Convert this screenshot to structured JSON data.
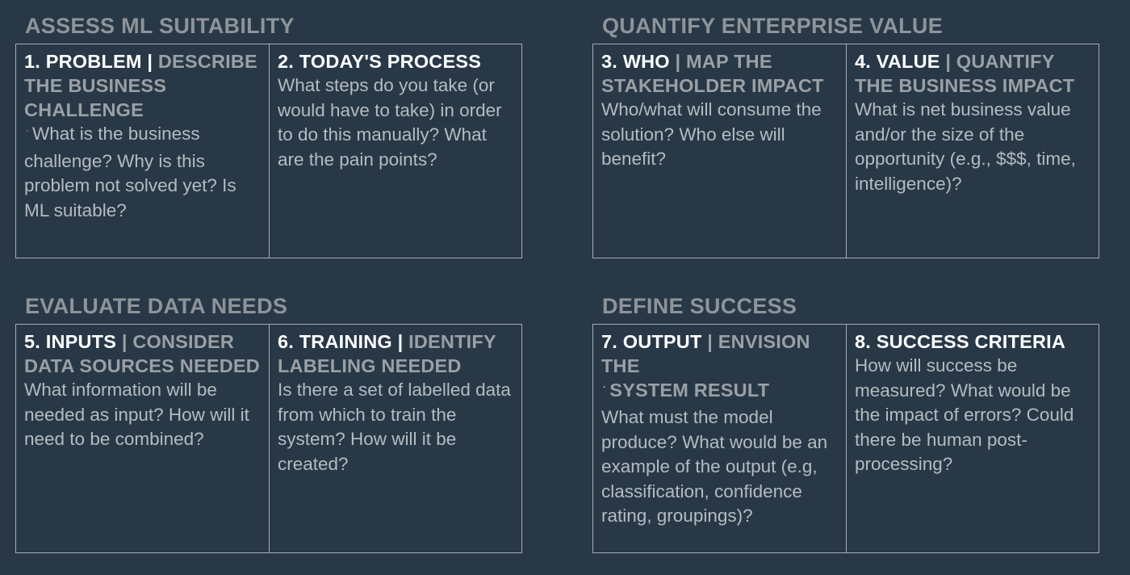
{
  "sections": [
    {
      "title": "ASSESS ML SUITABILITY",
      "cells": [
        {
          "num": "1. PROBLEM |",
          "sub": "DESCRIBE THE BUSINESS CHALLENGE",
          "body": "What is the business challenge? Why is this problem not solved yet? Is ML suitable?"
        },
        {
          "num": "2. TODAY'S PROCESS",
          "sub": "",
          "body": "What steps do you take (or would have to take) in order to do this manually? What are the pain points?"
        }
      ]
    },
    {
      "title": "QUANTIFY ENTERPRISE VALUE",
      "cells": [
        {
          "num": "3. WHO",
          "sub": "| MAP THE STAKEHOLDER IMPACT",
          "body": "Who/what will consume the solution? Who else will benefit?"
        },
        {
          "num": "4. VALUE",
          "sub": "| QUANTIFY THE BUSINESS IMPACT",
          "body": "What is net business value and/or the size of the opportunity (e.g., $$$, time, intelligence)?"
        }
      ]
    },
    {
      "title": "EVALUATE DATA NEEDS",
      "cells": [
        {
          "num": "5. INPUTS",
          "sub": "| CONSIDER DATA SOURCES NEEDED",
          "body": "What information will be needed as input? How will it need to be combined?"
        },
        {
          "num": "6. TRAINING |",
          "sub": "IDENTIFY LABELING NEEDED",
          "body": "Is there a set of labelled data from which to train the system? How will it be created?"
        }
      ]
    },
    {
      "title": "DEFINE SUCCESS",
      "cells": [
        {
          "num": "7. OUTPUT",
          "sub": "| ENVISION",
          "sub2a": "THE",
          "sub2b": "SYSTEM RESULT",
          "body": "What must the model produce? What would be an example of the output (e.g, classification, confidence rating, groupings)?"
        },
        {
          "num": "8. SUCCESS CRITERIA",
          "sub": "",
          "body": "How will success be measured? What would be the impact of errors? Could there be human post-processing?"
        }
      ]
    }
  ]
}
